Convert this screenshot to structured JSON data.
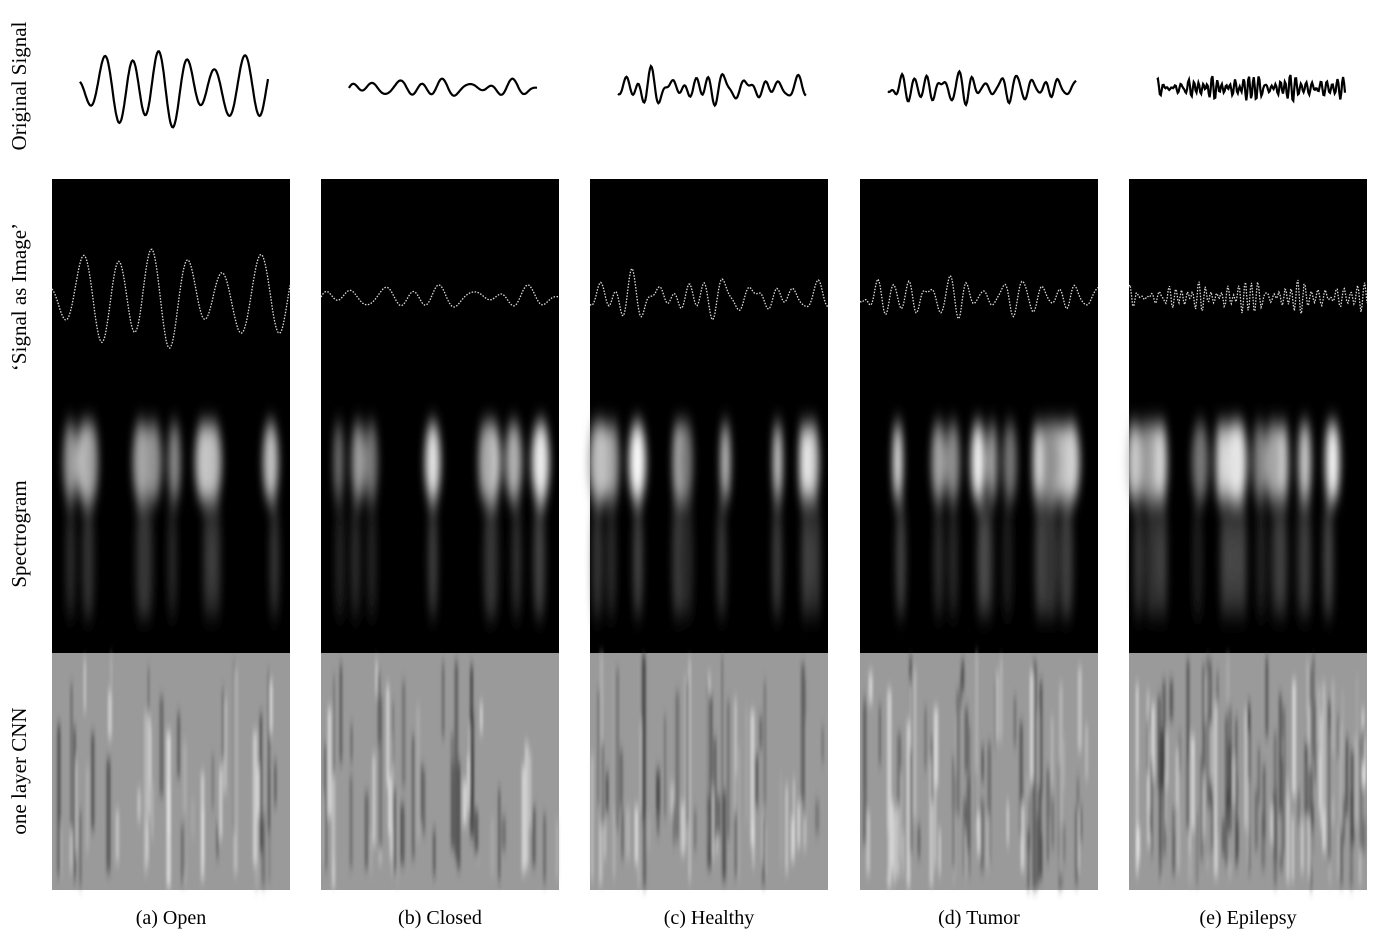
{
  "row_labels": [
    "Original Signal",
    "‘Signal as Image’",
    "Spectrogram",
    "one layer CNN"
  ],
  "columns": [
    {
      "caption": "(a) Open"
    },
    {
      "caption": "(b) Closed"
    },
    {
      "caption": "(c) Healthy"
    },
    {
      "caption": "(d) Tumor"
    },
    {
      "caption": "(e) Epilepsy"
    }
  ]
}
